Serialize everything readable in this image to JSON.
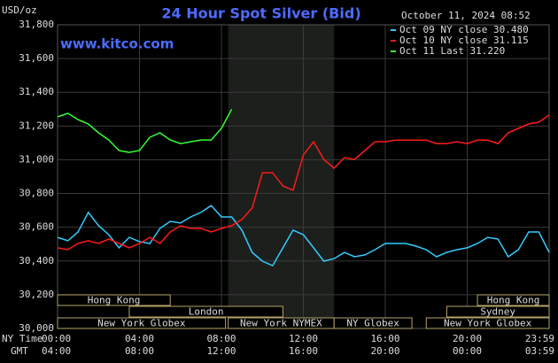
{
  "chart_data": {
    "type": "line",
    "title": "24 Hour Spot Silver (Bid)",
    "timestamp": "October 11, 2024 08:52",
    "watermark": "www.kitco.com",
    "y_label": "USD/oz",
    "x_label": "NY Time",
    "x2_label": "GMT",
    "x": [
      0,
      0.5,
      1,
      1.5,
      2,
      2.5,
      3,
      3.5,
      4,
      4.5,
      5,
      5.5,
      6,
      6.5,
      7,
      7.5,
      8,
      8.5,
      9,
      9.5,
      10,
      10.5,
      11,
      11.5,
      12,
      12.5,
      13,
      13.5,
      14,
      14.5,
      15,
      15.5,
      16,
      16.5,
      17,
      17.5,
      18,
      18.5,
      19,
      19.5,
      20,
      20.5,
      21,
      21.5,
      22,
      22.5,
      23,
      23.5,
      24
    ],
    "series": [
      {
        "name": "Oct 09 NY close 30.480",
        "color": "#33ccff",
        "values": [
          30540,
          30520,
          30572,
          30688,
          30610,
          30556,
          30478,
          30540,
          30515,
          30504,
          30593,
          30635,
          30625,
          30661,
          30688,
          30729,
          30661,
          30661,
          30583,
          30451,
          30399,
          30372,
          30478,
          30583,
          30556,
          30478,
          30399,
          30414,
          30451,
          30425,
          30436,
          30467,
          30504,
          30504,
          30504,
          30488,
          30467,
          30425,
          30451,
          30467,
          30478,
          30504,
          30540,
          30530,
          30425,
          30467,
          30572,
          30572,
          30451
        ]
      },
      {
        "name": "Oct 10 NY close 31.115",
        "color": "#ff1a1a",
        "values": [
          30478,
          30467,
          30504,
          30520,
          30504,
          30530,
          30504,
          30478,
          30504,
          30540,
          30504,
          30572,
          30609,
          30593,
          30593,
          30572,
          30593,
          30609,
          30646,
          30714,
          30923,
          30923,
          30845,
          30819,
          31028,
          31107,
          31002,
          30950,
          31013,
          31002,
          31055,
          31107,
          31107,
          31116,
          31116,
          31116,
          31116,
          31096,
          31096,
          31107,
          31096,
          31116,
          31116,
          31096,
          31160,
          31186,
          31212,
          31223,
          31265
        ]
      },
      {
        "name": "Oct 11 Last 31.220",
        "color": "#33ff33",
        "values": [
          31254,
          31275,
          31238,
          31212,
          31160,
          31117,
          31055,
          31044,
          31055,
          31133,
          31160,
          31117,
          31096,
          31107,
          31117,
          31117,
          31186,
          31300,
          null,
          null,
          null,
          null,
          null,
          null,
          null,
          null,
          null,
          null,
          null,
          null,
          null,
          null,
          null,
          null,
          null,
          null,
          null,
          null,
          null,
          null,
          null,
          null,
          null,
          null,
          null,
          null,
          null,
          null,
          null
        ]
      }
    ],
    "xlim": [
      0,
      24
    ],
    "xticks": [
      {
        "value": 0,
        "label": "00:00"
      },
      {
        "value": 4,
        "label": "04:00"
      },
      {
        "value": 8,
        "label": "08:00"
      },
      {
        "value": 12,
        "label": "12:00"
      },
      {
        "value": 16,
        "label": "16:00"
      },
      {
        "value": 20,
        "label": "20:00"
      },
      {
        "value": 24,
        "label": "23:59"
      }
    ],
    "gmt_labels": [
      "04:00",
      "08:00",
      "12:00",
      "16:00",
      "20:00",
      "00:00",
      "03:59"
    ],
    "ylim": [
      30000,
      31800
    ],
    "yticks": [
      {
        "value": 30000,
        "label": "30,000"
      },
      {
        "value": 30200,
        "label": "30,200"
      },
      {
        "value": 30400,
        "label": "30,400"
      },
      {
        "value": 30600,
        "label": "30,600"
      },
      {
        "value": 30800,
        "label": "30,800"
      },
      {
        "value": 31000,
        "label": "31,000"
      },
      {
        "value": 31200,
        "label": "31,200"
      },
      {
        "value": 31400,
        "label": "31,400"
      },
      {
        "value": 31600,
        "label": "31,600"
      },
      {
        "value": 31800,
        "label": "31,800"
      }
    ],
    "grid": true,
    "highlight": [
      8.33,
      13.5
    ],
    "sessions": [
      {
        "label": "Hong Kong",
        "start": 0,
        "end": 5.5,
        "row": 0
      },
      {
        "label": "London",
        "start": 3.5,
        "end": 11,
        "row": 1
      },
      {
        "label": "New York Globex",
        "start": 0,
        "end": 8.2,
        "row": 2
      },
      {
        "label": "New York NYMEX",
        "start": 8.33,
        "end": 13.5,
        "row": 2
      },
      {
        "label": "NY Globex",
        "start": 13.5,
        "end": 17.3,
        "row": 2
      },
      {
        "label": "Hong Kong",
        "start": 20.5,
        "end": 24,
        "row": 0
      },
      {
        "label": "Sydney",
        "start": 19,
        "end": 24,
        "row": 1
      },
      {
        "label": "New York Globex",
        "start": 18,
        "end": 24,
        "row": 2
      }
    ]
  }
}
